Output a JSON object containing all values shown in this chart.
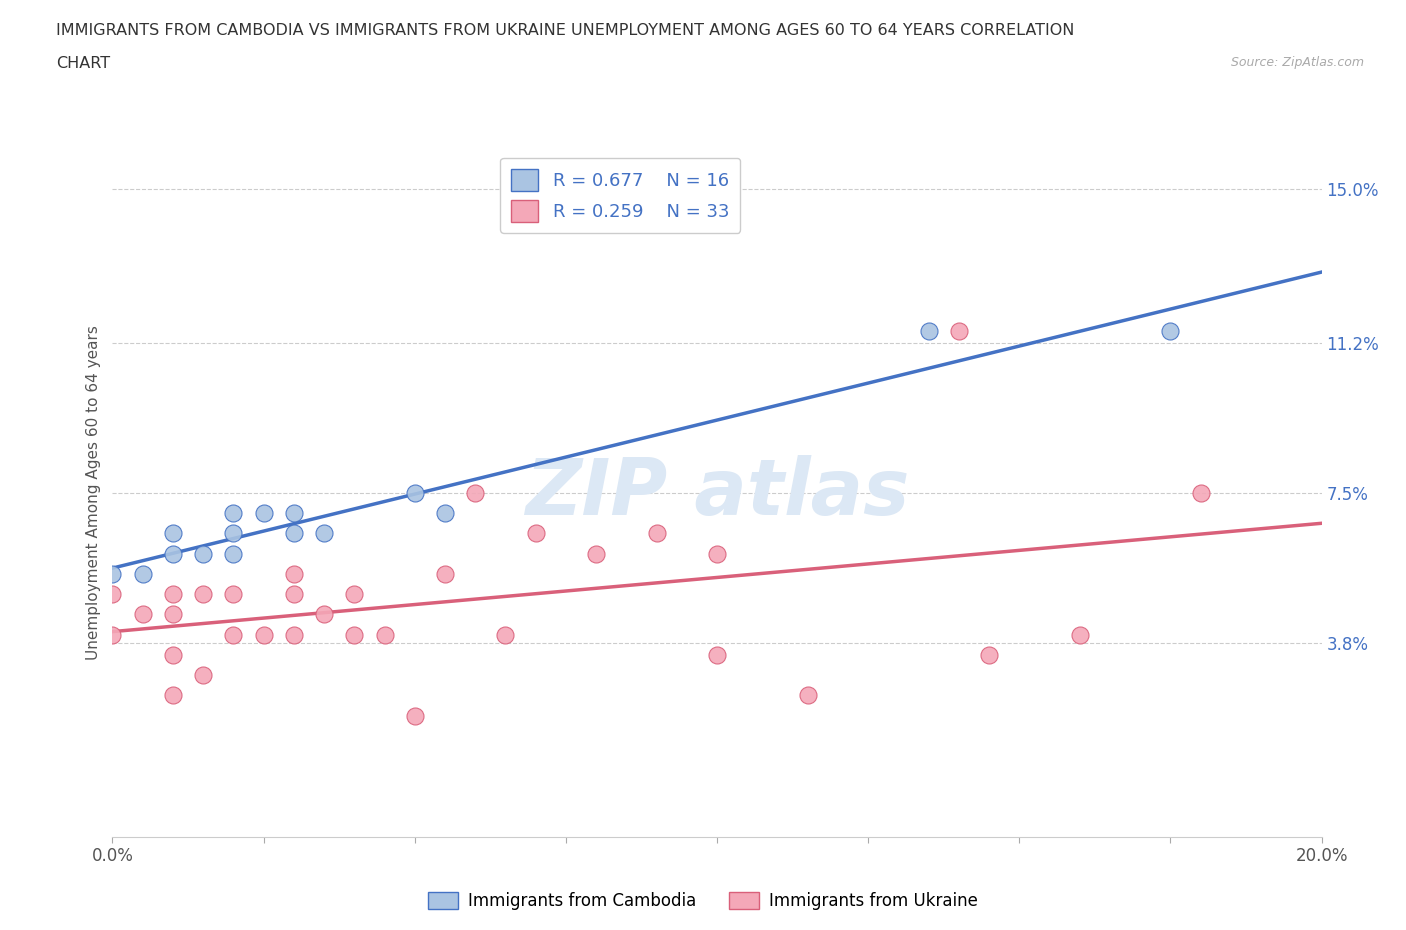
{
  "title_line1": "IMMIGRANTS FROM CAMBODIA VS IMMIGRANTS FROM UKRAINE UNEMPLOYMENT AMONG AGES 60 TO 64 YEARS CORRELATION",
  "title_line2": "CHART",
  "source": "Source: ZipAtlas.com",
  "ylabel": "Unemployment Among Ages 60 to 64 years",
  "xlim": [
    0.0,
    0.2
  ],
  "ylim": [
    -0.01,
    0.16
  ],
  "xtick_positions": [
    0.0,
    0.025,
    0.05,
    0.075,
    0.1,
    0.125,
    0.15,
    0.175,
    0.2
  ],
  "xtick_labels_show": {
    "0.0": "0.0%",
    "0.20": "20.0%"
  },
  "ytick_vals_right": [
    0.15,
    0.112,
    0.075,
    0.038
  ],
  "ytick_labels_right": [
    "15.0%",
    "11.2%",
    "7.5%",
    "3.8%"
  ],
  "R_cambodia": 0.677,
  "N_cambodia": 16,
  "R_ukraine": 0.259,
  "N_ukraine": 33,
  "color_cambodia": "#aac4e2",
  "color_ukraine": "#f4a8b8",
  "line_color_cambodia": "#4472c4",
  "line_color_ukraine": "#d9607a",
  "legend_label_cambodia": "Immigrants from Cambodia",
  "legend_label_ukraine": "Immigrants from Ukraine",
  "cambodia_x": [
    0.0,
    0.005,
    0.01,
    0.01,
    0.015,
    0.02,
    0.02,
    0.02,
    0.025,
    0.03,
    0.03,
    0.035,
    0.05,
    0.055,
    0.135,
    0.175
  ],
  "cambodia_y": [
    0.055,
    0.055,
    0.06,
    0.065,
    0.06,
    0.06,
    0.065,
    0.07,
    0.07,
    0.065,
    0.07,
    0.065,
    0.075,
    0.07,
    0.115,
    0.115
  ],
  "ukraine_x": [
    0.0,
    0.0,
    0.005,
    0.01,
    0.01,
    0.01,
    0.01,
    0.015,
    0.015,
    0.02,
    0.02,
    0.025,
    0.03,
    0.03,
    0.03,
    0.035,
    0.04,
    0.04,
    0.045,
    0.05,
    0.055,
    0.06,
    0.065,
    0.07,
    0.08,
    0.09,
    0.1,
    0.1,
    0.115,
    0.14,
    0.145,
    0.16,
    0.18
  ],
  "ukraine_y": [
    0.04,
    0.05,
    0.045,
    0.025,
    0.035,
    0.045,
    0.05,
    0.03,
    0.05,
    0.04,
    0.05,
    0.04,
    0.04,
    0.05,
    0.055,
    0.045,
    0.04,
    0.05,
    0.04,
    0.02,
    0.055,
    0.075,
    0.04,
    0.065,
    0.06,
    0.065,
    0.035,
    0.06,
    0.025,
    0.115,
    0.035,
    0.04,
    0.075
  ],
  "background_color": "#ffffff",
  "grid_color": "#cccccc",
  "watermark_color": "#dce8f5"
}
